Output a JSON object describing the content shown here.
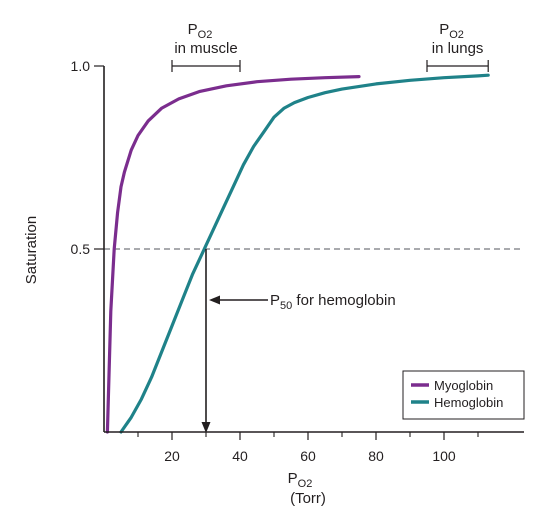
{
  "chart_data": {
    "type": "line",
    "xlabel": "P",
    "xlabel_sub": "O2",
    "xlabel_unit": "(Torr)",
    "ylabel": "Saturation",
    "xlim": [
      0,
      123
    ],
    "ylim": [
      0,
      1.05
    ],
    "x_ticks": [
      20,
      40,
      60,
      80,
      100
    ],
    "x_minor_ticks": [
      10,
      30,
      50,
      70,
      90,
      110
    ],
    "y_ticks": [
      {
        "value": 0.5,
        "label": "0.5"
      },
      {
        "value": 1.0,
        "label": "1.0"
      }
    ],
    "grid": false,
    "legend_position": "bottom-right",
    "series": [
      {
        "name": "Myoglobin",
        "color": "#7b2d8e",
        "x": [
          1,
          2,
          3,
          4,
          5,
          6,
          8,
          10,
          13,
          17,
          22,
          28,
          36,
          45,
          55,
          65,
          75
        ],
        "y": [
          0.0,
          0.33,
          0.5,
          0.6,
          0.67,
          0.71,
          0.77,
          0.81,
          0.85,
          0.885,
          0.91,
          0.93,
          0.946,
          0.957,
          0.964,
          0.968,
          0.971
        ]
      },
      {
        "name": "Hemoglobin",
        "color": "#1f8289",
        "x": [
          5,
          8,
          11,
          14,
          17,
          20,
          23,
          26,
          29,
          30,
          32,
          35,
          38,
          41,
          44,
          47,
          50,
          53,
          56,
          60,
          65,
          70,
          80,
          90,
          100,
          110,
          113
        ],
        "y": [
          0.0,
          0.04,
          0.09,
          0.15,
          0.22,
          0.29,
          0.36,
          0.43,
          0.49,
          0.51,
          0.55,
          0.61,
          0.67,
          0.73,
          0.78,
          0.82,
          0.86,
          0.885,
          0.9,
          0.914,
          0.927,
          0.937,
          0.951,
          0.961,
          0.968,
          0.973,
          0.975
        ]
      }
    ],
    "reference_line": {
      "y": 0.5,
      "style": "dashed",
      "color": "#9d9fa2"
    },
    "p50_marker": {
      "x": 30,
      "y": 0.5,
      "label_prefix": "P",
      "label_sub": "50",
      "label_suffix": " for hemoglobin"
    },
    "range_annotations": [
      {
        "line1_main": "P",
        "line1_sub": "O2",
        "line2": "in muscle",
        "x_start": 20,
        "x_end": 40,
        "y": 1.0
      },
      {
        "line1_main": "P",
        "line1_sub": "O2",
        "line2": "in lungs",
        "x_start": 95,
        "x_end": 113,
        "y": 1.0
      }
    ]
  }
}
